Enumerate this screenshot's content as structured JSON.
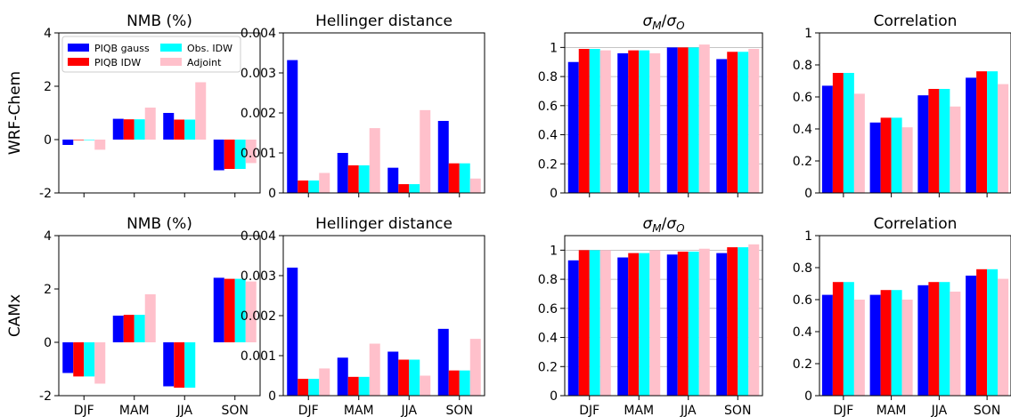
{
  "figure": {
    "row_labels": [
      "WRF-Chem",
      "CAMx"
    ],
    "colors": {
      "PIQB gauss": "#0000ff",
      "PIQB IDW": "#ff0000",
      "Obs. IDW": "#00ffff",
      "Adjoint": "#ffc0cb"
    }
  },
  "chart_data": [
    {
      "type": "bar",
      "title": "NMB (%)",
      "title_is_ratio": false,
      "row": 0,
      "col": 0,
      "categories": [
        "DJF",
        "MAM",
        "JJA",
        "SON"
      ],
      "ylim": [
        -2,
        4
      ],
      "yticks": [
        -2,
        0,
        2,
        4
      ],
      "yticklabels": [
        "-2",
        "0",
        "2",
        "4"
      ],
      "grid": false,
      "show_xticklabels": false,
      "legend": {
        "placement": "top-left",
        "entries": [
          "PIQB gauss",
          "PIQB IDW",
          "Obs. IDW",
          "Adjoint"
        ]
      },
      "series": [
        {
          "name": "PIQB gauss",
          "values": [
            -0.2,
            0.78,
            1.0,
            -1.15
          ]
        },
        {
          "name": "PIQB IDW",
          "values": [
            -0.02,
            0.76,
            0.75,
            -1.1
          ]
        },
        {
          "name": "Obs. IDW",
          "values": [
            -0.02,
            0.76,
            0.75,
            -1.1
          ]
        },
        {
          "name": "Adjoint",
          "values": [
            -0.38,
            1.2,
            2.15,
            -0.88
          ]
        }
      ]
    },
    {
      "type": "bar",
      "title": "Hellinger distance",
      "title_is_ratio": false,
      "row": 0,
      "col": 1,
      "categories": [
        "DJF",
        "MAM",
        "JJA",
        "SON"
      ],
      "ylim": [
        0,
        0.004
      ],
      "yticks": [
        0,
        0.001,
        0.002,
        0.003,
        0.004
      ],
      "yticklabels": [
        "0",
        "0.001",
        "0.002",
        "0.003",
        "0.004"
      ],
      "grid": false,
      "show_xticklabels": false,
      "series": [
        {
          "name": "PIQB gauss",
          "values": [
            0.00332,
            0.001,
            0.00063,
            0.0018
          ]
        },
        {
          "name": "PIQB IDW",
          "values": [
            0.00031,
            0.00069,
            0.00022,
            0.00074
          ]
        },
        {
          "name": "Obs. IDW",
          "values": [
            0.00031,
            0.00069,
            0.00022,
            0.00074
          ]
        },
        {
          "name": "Adjoint",
          "values": [
            0.0005,
            0.00162,
            0.00207,
            0.00036
          ]
        }
      ]
    },
    {
      "type": "bar",
      "title": "σM/σO",
      "title_is_ratio": true,
      "row": 0,
      "col": 2,
      "categories": [
        "DJF",
        "MAM",
        "JJA",
        "SON"
      ],
      "ylim": [
        0,
        1.1
      ],
      "yticks": [
        0,
        0.2,
        0.4,
        0.6,
        0.8,
        1
      ],
      "yticklabels": [
        "0",
        "0.2",
        "0.4",
        "0.6",
        "0.8",
        "1"
      ],
      "grid": true,
      "show_xticklabels": false,
      "series": [
        {
          "name": "PIQB gauss",
          "values": [
            0.9,
            0.96,
            1.0,
            0.92
          ]
        },
        {
          "name": "PIQB IDW",
          "values": [
            0.99,
            0.98,
            1.0,
            0.97
          ]
        },
        {
          "name": "Obs. IDW",
          "values": [
            0.99,
            0.98,
            1.0,
            0.97
          ]
        },
        {
          "name": "Adjoint",
          "values": [
            0.98,
            0.96,
            1.02,
            0.99
          ]
        }
      ]
    },
    {
      "type": "bar",
      "title": "Correlation",
      "title_is_ratio": false,
      "row": 0,
      "col": 3,
      "categories": [
        "DJF",
        "MAM",
        "JJA",
        "SON"
      ],
      "ylim": [
        0,
        1
      ],
      "yticks": [
        0,
        0.2,
        0.4,
        0.6,
        0.8,
        1
      ],
      "yticklabels": [
        "0",
        "0.2",
        "0.4",
        "0.6",
        "0.8",
        "1"
      ],
      "grid": false,
      "show_xticklabels": false,
      "series": [
        {
          "name": "PIQB gauss",
          "values": [
            0.67,
            0.44,
            0.61,
            0.72
          ]
        },
        {
          "name": "PIQB IDW",
          "values": [
            0.75,
            0.47,
            0.65,
            0.76
          ]
        },
        {
          "name": "Obs. IDW",
          "values": [
            0.75,
            0.47,
            0.65,
            0.76
          ]
        },
        {
          "name": "Adjoint",
          "values": [
            0.62,
            0.41,
            0.54,
            0.68
          ]
        }
      ]
    },
    {
      "type": "bar",
      "title": "NMB (%)",
      "title_is_ratio": false,
      "row": 1,
      "col": 0,
      "categories": [
        "DJF",
        "MAM",
        "JJA",
        "SON"
      ],
      "ylim": [
        -2,
        4
      ],
      "yticks": [
        -2,
        0,
        2,
        4
      ],
      "yticklabels": [
        "-2",
        "0",
        "2",
        "4"
      ],
      "grid": false,
      "show_xticklabels": true,
      "series": [
        {
          "name": "PIQB gauss",
          "values": [
            -1.15,
            1.0,
            -1.65,
            2.42
          ]
        },
        {
          "name": "PIQB IDW",
          "values": [
            -1.28,
            1.03,
            -1.7,
            2.38
          ]
        },
        {
          "name": "Obs. IDW",
          "values": [
            -1.28,
            1.03,
            -1.7,
            2.38
          ]
        },
        {
          "name": "Adjoint",
          "values": [
            -1.55,
            1.8,
            0,
            2.28
          ]
        }
      ]
    },
    {
      "type": "bar",
      "title": "Hellinger distance",
      "title_is_ratio": false,
      "row": 1,
      "col": 1,
      "categories": [
        "DJF",
        "MAM",
        "JJA",
        "SON"
      ],
      "ylim": [
        0,
        0.004
      ],
      "yticks": [
        0,
        0.001,
        0.002,
        0.003,
        0.004
      ],
      "yticklabels": [
        "0",
        "0.001",
        "0.002",
        "0.003",
        "0.004"
      ],
      "grid": false,
      "show_xticklabels": true,
      "series": [
        {
          "name": "PIQB gauss",
          "values": [
            0.0032,
            0.00095,
            0.0011,
            0.00167
          ]
        },
        {
          "name": "PIQB IDW",
          "values": [
            0.00042,
            0.00047,
            0.0009,
            0.00063
          ]
        },
        {
          "name": "Obs. IDW",
          "values": [
            0.00042,
            0.00047,
            0.0009,
            0.00063
          ]
        },
        {
          "name": "Adjoint",
          "values": [
            0.00068,
            0.0013,
            0.0005,
            0.00142
          ]
        }
      ]
    },
    {
      "type": "bar",
      "title": "σM/σO",
      "title_is_ratio": true,
      "row": 1,
      "col": 2,
      "categories": [
        "DJF",
        "MAM",
        "JJA",
        "SON"
      ],
      "ylim": [
        0,
        1.1
      ],
      "yticks": [
        0,
        0.2,
        0.4,
        0.6,
        0.8,
        1
      ],
      "yticklabels": [
        "0",
        "0.2",
        "0.4",
        "0.6",
        "0.8",
        "1"
      ],
      "grid": true,
      "show_xticklabels": true,
      "series": [
        {
          "name": "PIQB gauss",
          "values": [
            0.93,
            0.95,
            0.97,
            0.98
          ]
        },
        {
          "name": "PIQB IDW",
          "values": [
            1.0,
            0.98,
            0.99,
            1.02
          ]
        },
        {
          "name": "Obs. IDW",
          "values": [
            1.0,
            0.98,
            0.99,
            1.02
          ]
        },
        {
          "name": "Adjoint",
          "values": [
            1.0,
            1.0,
            1.01,
            1.04
          ]
        }
      ]
    },
    {
      "type": "bar",
      "title": "Correlation",
      "title_is_ratio": false,
      "row": 1,
      "col": 3,
      "categories": [
        "DJF",
        "MAM",
        "JJA",
        "SON"
      ],
      "ylim": [
        0,
        1
      ],
      "yticks": [
        0,
        0.2,
        0.4,
        0.6,
        0.8,
        1
      ],
      "yticklabels": [
        "0",
        "0.2",
        "0.4",
        "0.6",
        "0.8",
        "1"
      ],
      "grid": false,
      "show_xticklabels": true,
      "series": [
        {
          "name": "PIQB gauss",
          "values": [
            0.63,
            0.63,
            0.69,
            0.75
          ]
        },
        {
          "name": "PIQB IDW",
          "values": [
            0.71,
            0.66,
            0.71,
            0.79
          ]
        },
        {
          "name": "Obs. IDW",
          "values": [
            0.71,
            0.66,
            0.71,
            0.79
          ]
        },
        {
          "name": "Adjoint",
          "values": [
            0.6,
            0.6,
            0.65,
            0.73
          ]
        }
      ]
    }
  ]
}
